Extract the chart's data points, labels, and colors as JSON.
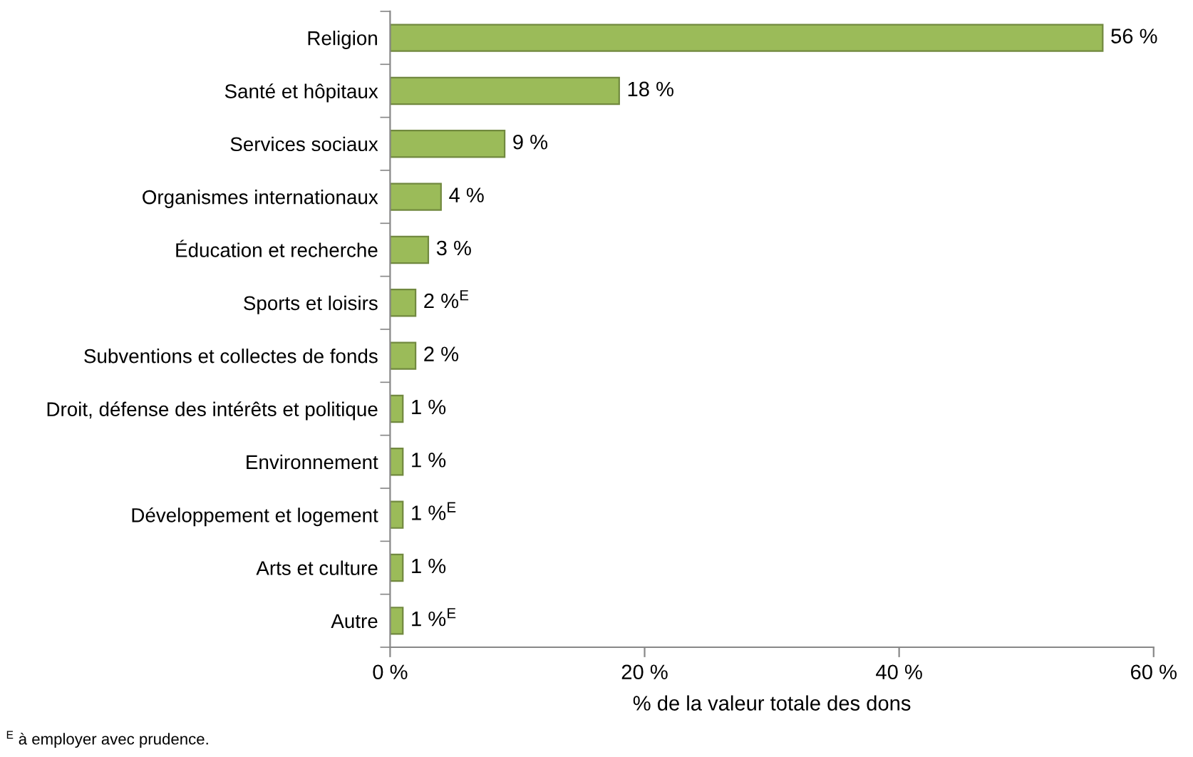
{
  "chart_data": {
    "type": "bar",
    "orientation": "horizontal",
    "xlabel": "% de la valeur totale des dons",
    "categories": [
      "Religion",
      "Santé et hôpitaux",
      "Services sociaux",
      "Organismes internationaux",
      "Éducation et recherche",
      "Sports et loisirs",
      "Subventions et collectes de fonds",
      "Droit, défense des intérêts et politique",
      "Environnement",
      "Développement et logement",
      "Arts et culture",
      "Autre"
    ],
    "values": [
      56,
      18,
      9,
      4,
      3,
      2,
      2,
      1,
      1,
      1,
      1,
      1
    ],
    "value_labels": [
      "56 %",
      "18 %",
      "9 %",
      "4 %",
      "3 %",
      "2 %$^{E}$",
      "2 %",
      "1 %",
      "1 %",
      "1 %$^{E}$",
      "1 %",
      "1 %$^{E}$"
    ],
    "color": "#9bbb59",
    "xlim": [
      0,
      60
    ],
    "xticks": [
      {
        "value": 0,
        "label": "0 %"
      },
      {
        "value": 20,
        "label": "20 %"
      },
      {
        "value": 40,
        "label": "40 %"
      },
      {
        "value": 60,
        "label": "60 %"
      }
    ],
    "grid": false,
    "legend": false,
    "annotations": [
      "$^{E}$ à employer avec prudence."
    ]
  }
}
